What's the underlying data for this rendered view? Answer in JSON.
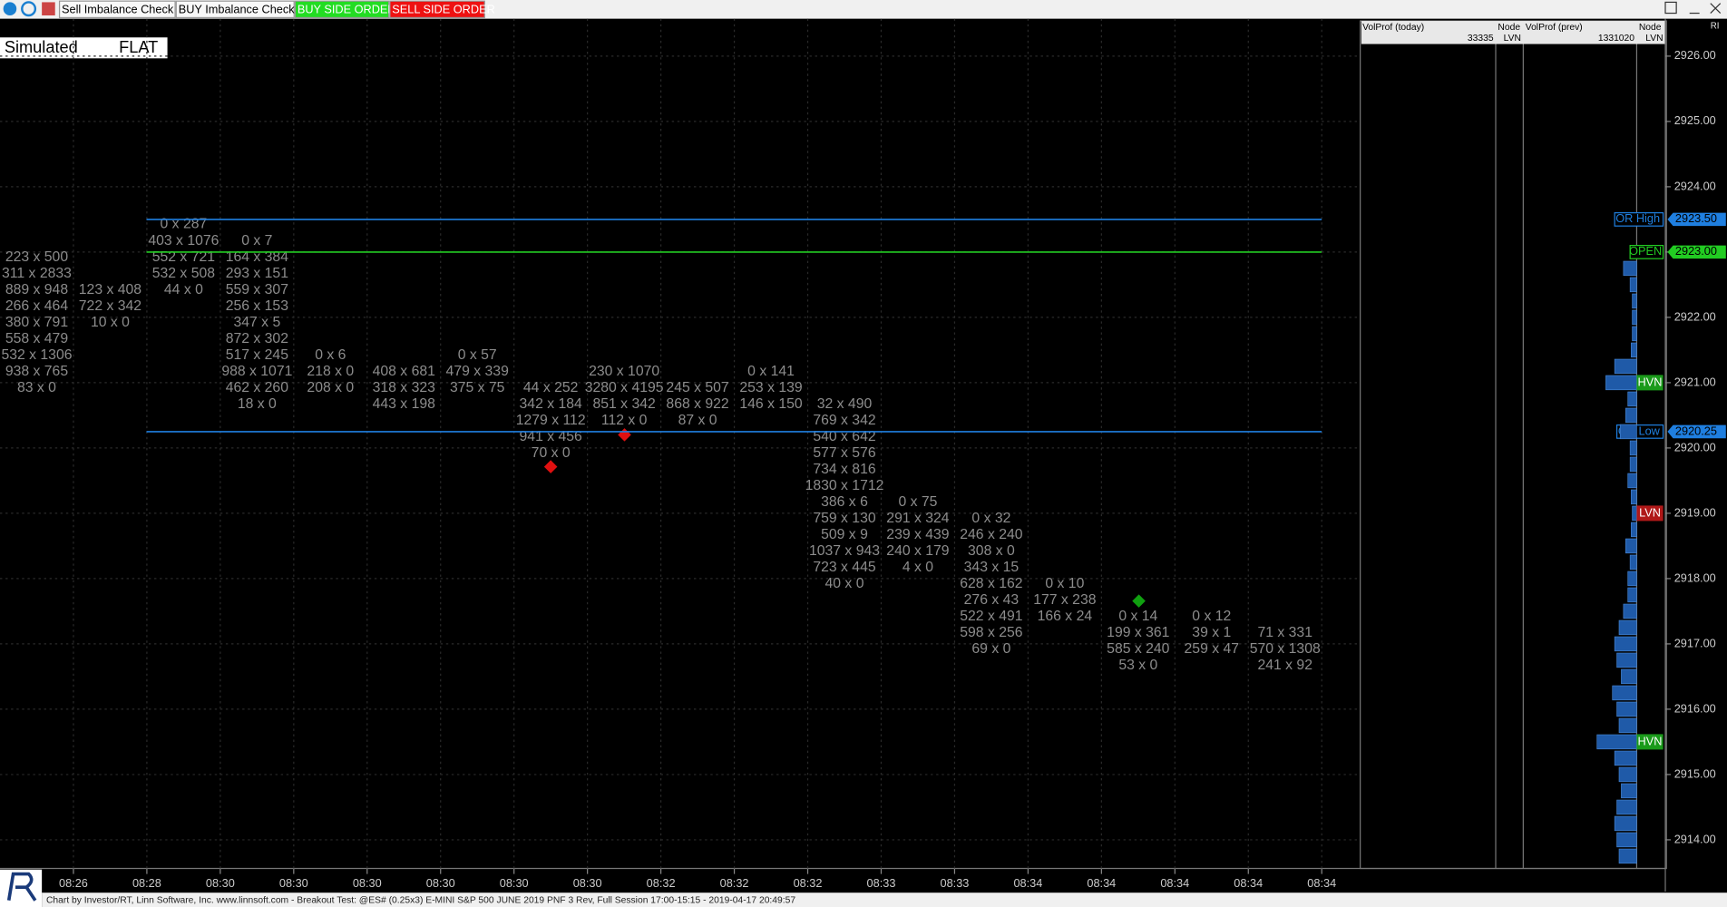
{
  "toolbar": {
    "buttons": [
      "Sell Imbalance Check",
      "BUY Imbalance Check E",
      "BUY SIDE ORDER",
      "SELL SIDE ORDER"
    ],
    "corner_label": "RI"
  },
  "status": {
    "mode": "Simulated",
    "position": "FLAT"
  },
  "price_axis": {
    "ticks": [
      {
        "value": 2926,
        "label": "2926.00"
      },
      {
        "value": 2925,
        "label": "2925.00"
      },
      {
        "value": 2924,
        "label": "2924.00"
      },
      {
        "value": 2923,
        "label": "2923.00"
      },
      {
        "value": 2922,
        "label": "2922.00"
      },
      {
        "value": 2921,
        "label": "2921.00"
      },
      {
        "value": 2920,
        "label": "2920.00"
      },
      {
        "value": 2919,
        "label": "2919.00"
      },
      {
        "value": 2918,
        "label": "2918.00"
      },
      {
        "value": 2917,
        "label": "2917.00"
      },
      {
        "value": 2916,
        "label": "2916.00"
      },
      {
        "value": 2915,
        "label": "2915.00"
      },
      {
        "value": 2914,
        "label": "2914.00"
      }
    ]
  },
  "levels": [
    {
      "name": "OR High",
      "price": {
        "value": 2923.5,
        "label": "2923.50"
      },
      "color": "#1f7fe0"
    },
    {
      "name": "OPEN",
      "price": {
        "value": 2923,
        "label": "2923.00"
      },
      "color": "#22cc22"
    },
    {
      "name": "OR Low",
      "price": {
        "value": 2920.25,
        "label": "2920.25"
      },
      "color": "#1f7fe0"
    }
  ],
  "nodes": [
    {
      "name": "HVN",
      "price": 2921,
      "color": "#1a9a1a"
    },
    {
      "name": "LVN",
      "price": 2919,
      "color": "#b01818"
    },
    {
      "name": "HVN",
      "price": 2915.5,
      "color": "#1a9a1a"
    }
  ],
  "volume_profile": {
    "headers": [
      "VolProf (today)",
      "Node",
      "VolProf (prev)",
      "Node"
    ],
    "values_row": [
      "33335",
      "LVN",
      "1331020",
      "LVN"
    ],
    "values": [
      12,
      6,
      4,
      4,
      4,
      5,
      20,
      28,
      8,
      10,
      15,
      6,
      6,
      8,
      5,
      4,
      5,
      10,
      6,
      8,
      8,
      12,
      16,
      20,
      18,
      14,
      22,
      18,
      16,
      36,
      20,
      16,
      14,
      18,
      20,
      18,
      16
    ]
  },
  "footprint": {
    "columns": [
      {
        "time": null,
        "cells": [
          null,
          null,
          "223 x 500",
          "311 x 2833",
          "889 x 948",
          "266 x 464",
          "380 x 791",
          "558 x 479",
          "532 x 1306",
          "938 x 765",
          "83 x 0"
        ]
      },
      {
        "time": "08:26",
        "cells": [
          null,
          null,
          null,
          null,
          "123 x 408",
          "722 x 342",
          "10 x 0"
        ]
      },
      {
        "time": "08:28",
        "cells": [
          "0 x 287",
          "403 x 1076",
          "552 x 721",
          "532 x 508",
          "44 x 0"
        ]
      },
      {
        "time": "08:30",
        "cells": [
          null,
          "0 x 7",
          "164 x 384",
          "293 x 151",
          "559 x 307",
          "256 x 153",
          "347 x 5",
          "872 x 302",
          "517 x 245",
          "988 x 1071",
          "462 x 260",
          "18 x 0"
        ]
      },
      {
        "time": "08:30",
        "cells": [
          null,
          null,
          null,
          null,
          null,
          null,
          null,
          null,
          "0 x 6",
          "218 x 0",
          "208 x 0"
        ]
      },
      {
        "time": "08:30",
        "cells": [
          null,
          null,
          null,
          null,
          null,
          null,
          null,
          null,
          null,
          "408 x 681",
          "318 x 323",
          "443 x 198"
        ]
      },
      {
        "time": "08:30",
        "cells": [
          null,
          null,
          null,
          null,
          null,
          null,
          null,
          null,
          "0 x 57",
          "479 x 339",
          "375 x 75"
        ]
      },
      {
        "time": "08:30",
        "cells": [
          null,
          null,
          null,
          null,
          null,
          null,
          null,
          null,
          null,
          null,
          "44 x 252",
          "342 x 184",
          "1279 x 112",
          "941 x 456",
          "70 x 0"
        ]
      },
      {
        "time": "08:30",
        "cells": [
          null,
          null,
          null,
          null,
          null,
          null,
          null,
          null,
          null,
          "230 x 1070",
          "3280 x 4195",
          "851 x 342",
          "112 x 0"
        ]
      },
      {
        "time": "08:32",
        "cells": [
          null,
          null,
          null,
          null,
          null,
          null,
          null,
          null,
          null,
          null,
          "245 x 507",
          "868 x 922",
          "87 x 0"
        ]
      },
      {
        "time": "08:32",
        "cells": [
          null,
          null,
          null,
          null,
          null,
          null,
          null,
          null,
          null,
          "0 x 141",
          "253 x 139",
          "146 x 150"
        ]
      },
      {
        "time": "08:32",
        "cells": [
          null,
          null,
          null,
          null,
          null,
          null,
          null,
          null,
          null,
          null,
          null,
          "32 x 490",
          "769 x 342",
          "540 x 642",
          "577 x 576",
          "734 x 816",
          "1830 x 1712",
          "386 x 6",
          "759 x 130",
          "509 x 9",
          "1037 x 943",
          "723 x 445",
          "40 x 0"
        ]
      },
      {
        "time": "08:33",
        "cells": [
          null,
          null,
          null,
          null,
          null,
          null,
          null,
          null,
          null,
          null,
          null,
          null,
          null,
          null,
          null,
          null,
          null,
          "0 x 75",
          "291 x 324",
          "239 x 439",
          "240 x 179",
          "4 x 0"
        ]
      },
      {
        "time": "08:33",
        "cells": [
          null,
          null,
          null,
          null,
          null,
          null,
          null,
          null,
          null,
          null,
          null,
          null,
          null,
          null,
          null,
          null,
          null,
          null,
          "0 x 32",
          "246 x 240",
          "308 x 0",
          "343 x 15",
          "628 x 162",
          "276 x 43",
          "522 x 491",
          "598 x 256",
          "69 x 0"
        ]
      },
      {
        "time": "08:34",
        "cells": [
          null,
          null,
          null,
          null,
          null,
          null,
          null,
          null,
          null,
          null,
          null,
          null,
          null,
          null,
          null,
          null,
          null,
          null,
          null,
          null,
          null,
          null,
          "0 x 10",
          "177 x 238",
          "166 x 24"
        ]
      },
      {
        "time": "08:34",
        "cells": [
          null,
          null,
          null,
          null,
          null,
          null,
          null,
          null,
          null,
          null,
          null,
          null,
          null,
          null,
          null,
          null,
          null,
          null,
          null,
          null,
          null,
          null,
          null,
          null,
          "0 x 14",
          "199 x 361",
          "585 x 240",
          "53 x 0"
        ]
      },
      {
        "time": "08:34",
        "cells": [
          null,
          null,
          null,
          null,
          null,
          null,
          null,
          null,
          null,
          null,
          null,
          null,
          null,
          null,
          null,
          null,
          null,
          null,
          null,
          null,
          null,
          null,
          null,
          null,
          "0 x 12",
          "39 x 1",
          "259 x 47"
        ]
      },
      {
        "time": "08:34",
        "cells": [
          null,
          null,
          null,
          null,
          null,
          null,
          null,
          null,
          null,
          null,
          null,
          null,
          null,
          null,
          null,
          null,
          null,
          null,
          null,
          null,
          null,
          null,
          null,
          null,
          null,
          "71 x 331",
          "570 x 1308",
          "241 x 92"
        ]
      },
      {
        "time": "08:34",
        "cells": []
      }
    ]
  },
  "footer": "Chart by Investor/RT, Linn Software, Inc. www.linnsoft.com - Breakout Test: @ES# (0.25x3) E-MINI S&P 500 JUNE 2019 PNF 3 Rev, Full Session 17:00-15:15 - 2019-04-17 20:49:57"
}
